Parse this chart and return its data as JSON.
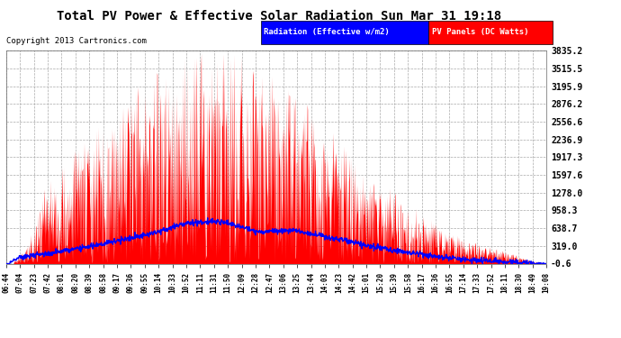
{
  "title": "Total PV Power & Effective Solar Radiation Sun Mar 31 19:18",
  "copyright": "Copyright 2013 Cartronics.com",
  "legend_blue": "Radiation (Effective w/m2)",
  "legend_red": "PV Panels (DC Watts)",
  "ymin": -0.6,
  "ymax": 3835.2,
  "yticks": [
    -0.6,
    319.0,
    638.7,
    958.3,
    1278.0,
    1597.6,
    1917.3,
    2236.9,
    2556.6,
    2876.2,
    3195.9,
    3515.5,
    3835.2
  ],
  "bg_color": "#ffffff",
  "plot_bg_color": "#ffffff",
  "grid_color": "#aaaaaa",
  "title_color": "#000000",
  "tick_color": "#000000",
  "x_labels": [
    "06:44",
    "07:04",
    "07:23",
    "07:42",
    "08:01",
    "08:20",
    "08:39",
    "08:58",
    "09:17",
    "09:36",
    "09:55",
    "10:14",
    "10:33",
    "10:52",
    "11:11",
    "11:31",
    "11:50",
    "12:09",
    "12:28",
    "12:47",
    "13:06",
    "13:25",
    "13:44",
    "14:03",
    "14:23",
    "14:42",
    "15:01",
    "15:20",
    "15:39",
    "15:58",
    "16:17",
    "16:36",
    "16:55",
    "17:14",
    "17:33",
    "17:52",
    "18:11",
    "18:30",
    "18:49",
    "19:08"
  ]
}
